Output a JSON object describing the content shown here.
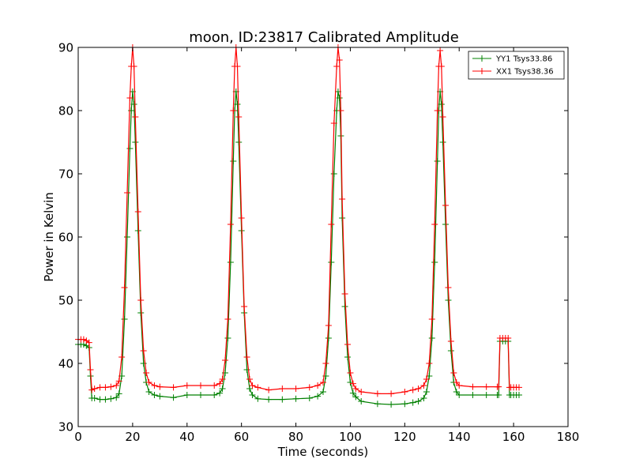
{
  "chart_data": {
    "type": "line",
    "title": "moon, ID:23817 Calibrated Amplitude",
    "xlabel": "Time (seconds)",
    "ylabel": "Power in Kelvin",
    "xlim": [
      0,
      180
    ],
    "ylim": [
      30,
      90
    ],
    "xticks": [
      0,
      20,
      40,
      60,
      80,
      100,
      120,
      140,
      160,
      180
    ],
    "yticks": [
      30,
      40,
      50,
      60,
      70,
      80,
      90
    ],
    "grid": false,
    "legend_position": "top-right",
    "marker": "+",
    "series": [
      {
        "name": "YY1 Tsys33.86",
        "color": "#008000",
        "x": [
          0,
          1,
          2,
          3,
          4,
          4.5,
          5,
          6,
          8,
          10,
          12,
          14,
          15,
          16,
          17,
          18,
          19,
          19.5,
          20,
          20.5,
          21,
          22,
          23,
          24,
          25,
          26,
          28,
          30,
          35,
          40,
          45,
          50,
          52,
          53,
          54,
          55,
          56,
          57,
          57.5,
          58,
          58.5,
          59,
          60,
          61,
          62,
          63,
          64,
          66,
          70,
          75,
          80,
          85,
          88,
          90,
          91,
          92,
          93,
          94,
          95,
          95.5,
          96,
          96.5,
          97,
          98,
          99,
          100,
          101,
          102,
          104,
          110,
          115,
          120,
          123,
          125,
          127,
          128,
          129,
          130,
          131,
          132,
          132.5,
          133,
          133.5,
          134,
          135,
          136,
          137,
          138,
          139,
          140,
          145,
          150,
          154,
          154.5,
          155,
          156,
          157,
          158,
          158.5,
          159,
          160,
          161,
          162
        ],
        "y": [
          43,
          43,
          43,
          42.8,
          42.5,
          38,
          34.5,
          34.5,
          34.3,
          34.3,
          34.4,
          34.6,
          35.2,
          38,
          47,
          60,
          74,
          80,
          83,
          81,
          75,
          61,
          48,
          40,
          37,
          35.5,
          35,
          34.8,
          34.6,
          35,
          35,
          35,
          35.3,
          36,
          38.5,
          44,
          56,
          72,
          80,
          83,
          81,
          75,
          61,
          48,
          39,
          36,
          35,
          34.4,
          34.3,
          34.3,
          34.4,
          34.5,
          34.8,
          35.5,
          38,
          44,
          56,
          70,
          80,
          83,
          82,
          76,
          63,
          49,
          41,
          37,
          35.3,
          34.7,
          34,
          33.6,
          33.5,
          33.6,
          33.8,
          34,
          34.5,
          35.5,
          38,
          44,
          56,
          72,
          80,
          83,
          81,
          75,
          62,
          50,
          42,
          37,
          35.5,
          35,
          35,
          35,
          35,
          35,
          43.5,
          43.5,
          43.5,
          43.5,
          35,
          35,
          35,
          35,
          35
        ]
      },
      {
        "name": "XX1 Tsys38.36",
        "color": "#ff0000",
        "x": [
          0,
          1,
          2,
          3,
          4,
          4.5,
          5,
          6,
          8,
          10,
          12,
          14,
          15,
          16,
          17,
          18,
          19,
          19.5,
          20,
          20.5,
          21,
          22,
          23,
          24,
          25,
          26,
          28,
          30,
          35,
          40,
          45,
          50,
          52,
          53,
          54,
          55,
          56,
          57,
          57.5,
          58,
          58.5,
          59,
          60,
          61,
          62,
          63,
          64,
          66,
          70,
          75,
          80,
          85,
          88,
          90,
          91,
          92,
          93,
          94,
          95,
          95.5,
          96,
          96.5,
          97,
          98,
          99,
          100,
          101,
          102,
          104,
          110,
          115,
          120,
          123,
          125,
          127,
          128,
          129,
          130,
          131,
          132,
          132.5,
          133,
          133.5,
          134,
          135,
          136,
          137,
          138,
          139,
          140,
          145,
          150,
          154,
          154.5,
          155,
          156,
          157,
          158,
          158.5,
          159,
          160,
          161,
          162
        ],
        "y": [
          43.8,
          43.8,
          43.8,
          43.6,
          43.3,
          39,
          35.8,
          36,
          36.2,
          36.2,
          36.3,
          36.5,
          37.2,
          41,
          52,
          67,
          82,
          87,
          90,
          87,
          79,
          64,
          50,
          42,
          38.5,
          37,
          36.5,
          36.3,
          36.2,
          36.5,
          36.5,
          36.5,
          36.8,
          37.5,
          40.5,
          47,
          62,
          80,
          87,
          90,
          87,
          79,
          63,
          49,
          41,
          37.5,
          36.5,
          36.2,
          35.8,
          36,
          36,
          36.2,
          36.5,
          37,
          40,
          46,
          62,
          78,
          87,
          90,
          88,
          80,
          66,
          51,
          43,
          38.5,
          36.8,
          36,
          35.5,
          35.2,
          35.2,
          35.5,
          35.8,
          36,
          36.5,
          37.5,
          40,
          47,
          62,
          80,
          87,
          89.5,
          87,
          79,
          65,
          52,
          43.5,
          38.5,
          37,
          36.5,
          36.3,
          36.3,
          36.3,
          36.3,
          44,
          44,
          44,
          44,
          36.2,
          36.2,
          36.2,
          36.2,
          36.2
        ]
      }
    ]
  }
}
